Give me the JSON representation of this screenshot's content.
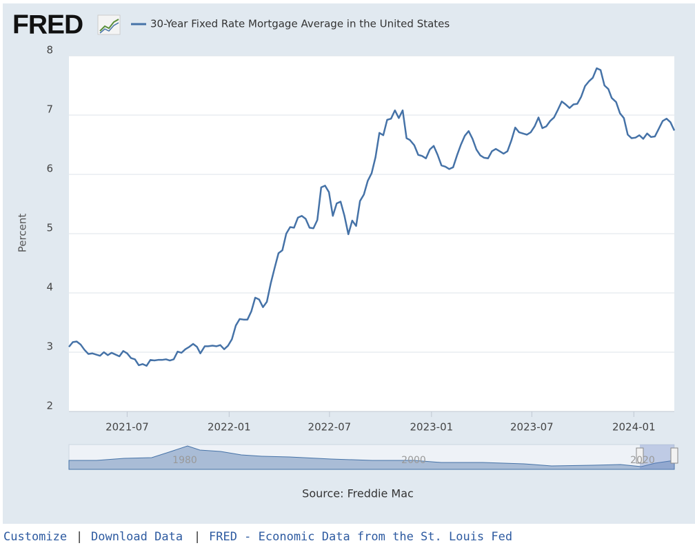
{
  "logo": "FRED",
  "chart_data": {
    "type": "line",
    "ylabel": "Percent",
    "source": "Source: Freddie Mac",
    "series": [
      {
        "name": "30-Year Fixed Rate Mortgage Average in the United States",
        "color": "#4572a7",
        "values": [
          3.09,
          3.17,
          3.18,
          3.13,
          3.04,
          2.97,
          2.98,
          2.96,
          2.94,
          3.0,
          2.95,
          2.99,
          2.96,
          2.93,
          3.02,
          2.98,
          2.9,
          2.88,
          2.78,
          2.8,
          2.77,
          2.87,
          2.86,
          2.87,
          2.87,
          2.88,
          2.86,
          2.88,
          3.01,
          2.99,
          3.05,
          3.09,
          3.14,
          3.09,
          2.98,
          3.1,
          3.1,
          3.11,
          3.1,
          3.12,
          3.05,
          3.11,
          3.22,
          3.45,
          3.56,
          3.55,
          3.55,
          3.69,
          3.92,
          3.89,
          3.76,
          3.85,
          4.16,
          4.42,
          4.67,
          4.72,
          5.0,
          5.11,
          5.1,
          5.27,
          5.3,
          5.25,
          5.1,
          5.09,
          5.23,
          5.78,
          5.81,
          5.7,
          5.3,
          5.51,
          5.54,
          5.3,
          4.99,
          5.22,
          5.13,
          5.55,
          5.66,
          5.89,
          6.02,
          6.29,
          6.7,
          6.66,
          6.92,
          6.94,
          7.08,
          6.95,
          7.08,
          6.61,
          6.58,
          6.49,
          6.33,
          6.31,
          6.27,
          6.42,
          6.48,
          6.33,
          6.15,
          6.13,
          6.09,
          6.12,
          6.32,
          6.5,
          6.65,
          6.73,
          6.6,
          6.42,
          6.32,
          6.28,
          6.27,
          6.39,
          6.43,
          6.39,
          6.35,
          6.39,
          6.57,
          6.79,
          6.71,
          6.69,
          6.67,
          6.71,
          6.81,
          6.96,
          6.78,
          6.81,
          6.9,
          6.96,
          7.09,
          7.23,
          7.18,
          7.12,
          7.18,
          7.19,
          7.31,
          7.49,
          7.57,
          7.63,
          7.79,
          7.76,
          7.5,
          7.44,
          7.29,
          7.22,
          7.03,
          6.95,
          6.67,
          6.61,
          6.62,
          6.66,
          6.6,
          6.69,
          6.63,
          6.64,
          6.77,
          6.9,
          6.94,
          6.88,
          6.74
        ]
      }
    ],
    "x": [
      "2021-03-18",
      "2021-03-25",
      "2021-04-01",
      "2021-04-08",
      "2021-04-15",
      "2021-04-22",
      "2021-04-29",
      "2021-05-06",
      "2021-05-13",
      "2021-05-20",
      "2021-05-27",
      "2021-06-03",
      "2021-06-10",
      "2021-06-17",
      "2021-06-24",
      "2021-07-01",
      "2021-07-08",
      "2021-07-15",
      "2021-07-22",
      "2021-07-29",
      "2021-08-05",
      "2021-08-12",
      "2021-08-19",
      "2021-08-26",
      "2021-09-02",
      "2021-09-09",
      "2021-09-16",
      "2021-09-23",
      "2021-09-30",
      "2021-10-07",
      "2021-10-14",
      "2021-10-21",
      "2021-10-28",
      "2021-11-04",
      "2021-11-10",
      "2021-11-18",
      "2021-11-24",
      "2021-12-02",
      "2021-12-09",
      "2021-12-16",
      "2021-12-23",
      "2021-12-30",
      "2022-01-06",
      "2022-01-13",
      "2022-01-20",
      "2022-01-27",
      "2022-02-03",
      "2022-02-10",
      "2022-02-17",
      "2022-02-24",
      "2022-03-03",
      "2022-03-10",
      "2022-03-17",
      "2022-03-24",
      "2022-03-31",
      "2022-04-07",
      "2022-04-14",
      "2022-04-21",
      "2022-04-28",
      "2022-05-05",
      "2022-05-12",
      "2022-05-19",
      "2022-05-26",
      "2022-06-02",
      "2022-06-09",
      "2022-06-16",
      "2022-06-23",
      "2022-06-30",
      "2022-07-07",
      "2022-07-14",
      "2022-07-21",
      "2022-07-28",
      "2022-08-04",
      "2022-08-11",
      "2022-08-18",
      "2022-08-25",
      "2022-09-01",
      "2022-09-08",
      "2022-09-15",
      "2022-09-22",
      "2022-09-29",
      "2022-10-06",
      "2022-10-13",
      "2022-10-20",
      "2022-10-27",
      "2022-11-03",
      "2022-11-10",
      "2022-11-17",
      "2022-11-23",
      "2022-12-01",
      "2022-12-08",
      "2022-12-15",
      "2022-12-22",
      "2022-12-29",
      "2023-01-05",
      "2023-01-12",
      "2023-01-19",
      "2023-01-26",
      "2023-02-02",
      "2023-02-09",
      "2023-02-16",
      "2023-02-23",
      "2023-03-02",
      "2023-03-09",
      "2023-03-16",
      "2023-03-23",
      "2023-03-30",
      "2023-04-06",
      "2023-04-13",
      "2023-04-20",
      "2023-04-27",
      "2023-05-04",
      "2023-05-11",
      "2023-05-18",
      "2023-05-25",
      "2023-06-01",
      "2023-06-08",
      "2023-06-15",
      "2023-06-22",
      "2023-06-29",
      "2023-07-06",
      "2023-07-13",
      "2023-07-20",
      "2023-07-27",
      "2023-08-03",
      "2023-08-10",
      "2023-08-17",
      "2023-08-24",
      "2023-08-31",
      "2023-09-07",
      "2023-09-14",
      "2023-09-21",
      "2023-09-28",
      "2023-10-05",
      "2023-10-12",
      "2023-10-19",
      "2023-10-26",
      "2023-11-02",
      "2023-11-09",
      "2023-11-16",
      "2023-11-22",
      "2023-11-30",
      "2023-12-07",
      "2023-12-14",
      "2023-12-21",
      "2023-12-28",
      "2024-01-04",
      "2024-01-11",
      "2024-01-18",
      "2024-01-25",
      "2024-02-01",
      "2024-02-08",
      "2024-02-15",
      "2024-02-22",
      "2024-02-29",
      "2024-03-07",
      "2024-03-14"
    ],
    "xlim": [
      "2021-03-18",
      "2024-03-14"
    ],
    "xticks": [
      "2021-07",
      "2022-01",
      "2022-07",
      "2023-01",
      "2023-07",
      "2024-01"
    ],
    "ylim": [
      2,
      8
    ],
    "yticks": [
      2,
      3,
      4,
      5,
      6,
      7,
      8
    ],
    "grid": true
  },
  "navigator": {
    "labels": [
      "1980",
      "2000",
      "2020"
    ]
  },
  "footer": {
    "links": [
      "Customize",
      "Download Data",
      "FRED - Economic Data from the St. Louis Fed"
    ],
    "separators": [
      "|",
      "|"
    ]
  }
}
